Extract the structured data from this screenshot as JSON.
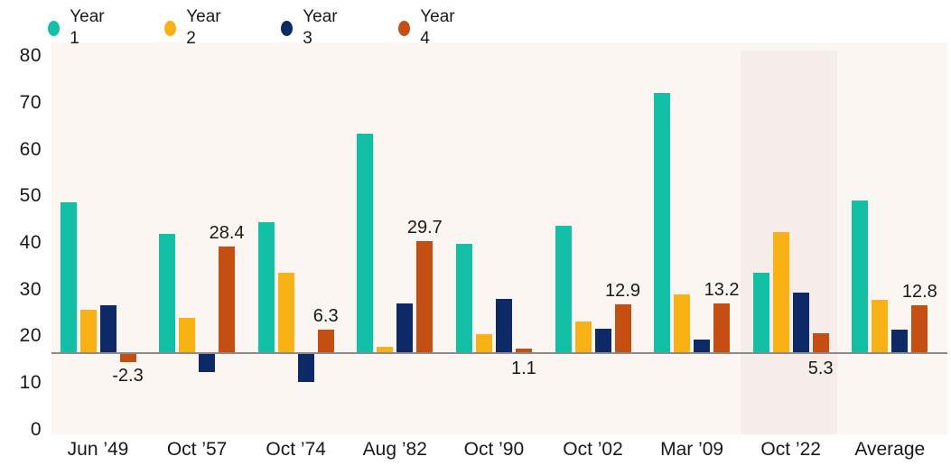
{
  "chart_data": {
    "type": "bar",
    "title": "",
    "categories": [
      "Jun ’49",
      "Oct ’57",
      "Oct ’74",
      "Aug ’82",
      "Oct ’90",
      "Oct ’02",
      "Mar ’09",
      "Oct ’22",
      "Average"
    ],
    "series": [
      {
        "name": "Year 1",
        "color": "#14c0a5",
        "values": [
          40.2,
          31.7,
          34.9,
          58.4,
          29.0,
          33.8,
          69.2,
          21.3,
          40.6
        ]
      },
      {
        "name": "Year 2",
        "color": "#f9b215",
        "values": [
          11.6,
          9.4,
          21.4,
          1.6,
          5.1,
          8.3,
          15.7,
          32.1,
          14.3
        ]
      },
      {
        "name": "Year 3",
        "color": "#0d2a66",
        "values": [
          12.8,
          -5.0,
          -7.6,
          13.3,
          14.5,
          6.5,
          3.6,
          16.1,
          6.3
        ]
      },
      {
        "name": "Year 4",
        "color": "#c54e12",
        "values": [
          -2.3,
          28.4,
          6.3,
          29.7,
          1.1,
          12.9,
          13.2,
          5.3,
          12.8
        ]
      }
    ],
    "value_labels": {
      "series": "Year 4",
      "texts": [
        "-2.3",
        "28.4",
        "6.3",
        "29.7",
        "1.1",
        "12.9",
        "13.2",
        "5.3",
        "12.8"
      ],
      "placement": [
        "below",
        "above",
        "above",
        "above",
        "below",
        "above",
        "above",
        "below",
        "above"
      ]
    },
    "y_axis": {
      "ticks": [
        0,
        10,
        20,
        30,
        40,
        50,
        60,
        70,
        80
      ],
      "range": [
        0,
        80
      ],
      "grid": false
    },
    "legend_position": "top-left",
    "highlight": {
      "category": "Oct ’22"
    },
    "colors": {
      "plot_bg": "#fcf6f3",
      "highlight_bg": "#f7ede8",
      "baseline": "#8b8b8b",
      "text": "#191919"
    }
  }
}
